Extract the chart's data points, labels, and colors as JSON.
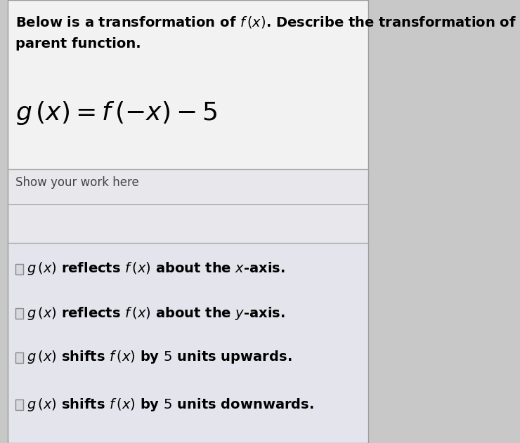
{
  "bg_outer": "#c8c8c8",
  "bg_top": "#f5f5f5",
  "bg_work": "#e8e8e8",
  "bg_options": "#e0e0e8",
  "divider_color": "#aaaaaa",
  "header_line1": "Below is a transformation of $f\\,(x)$. Describe the transformation of the",
  "header_line2": "parent function.",
  "equation": "$g\\,(x) = f\\,(-x) - 5$",
  "show_work_label": "Show your work here",
  "option1": "$g\\,(x)$ reflects $f\\,(x)$ about the $x$-axis.",
  "option2": "$g\\,(x)$ reflects $f\\,(x)$ about the $y$-axis.",
  "option3": "$g\\,(x)$ shifts $f\\,(x)$ by $5$ units upwards.",
  "option4": "$g\\,(x)$ shifts $f\\,(x)$ by $5$ units downwards.",
  "header_fontsize": 14,
  "equation_fontsize": 26,
  "show_work_fontsize": 12,
  "option_fontsize": 14
}
